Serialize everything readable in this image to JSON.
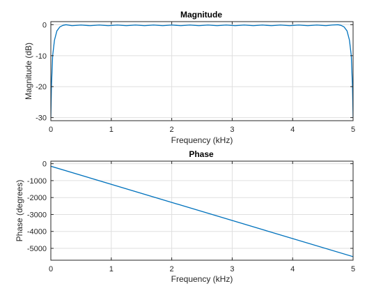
{
  "chart_data": [
    {
      "type": "line",
      "title": "Magnitude",
      "xlabel": "Frequency (kHz)",
      "ylabel": "Magnitude (dB)",
      "xlim": [
        0,
        5
      ],
      "ylim": [
        -31,
        1
      ],
      "xticks": [
        0,
        1,
        2,
        3,
        4,
        5
      ],
      "yticks": [
        -30,
        -20,
        -10,
        0
      ],
      "xticklabels": [
        "0",
        "1",
        "2",
        "3",
        "4",
        "5"
      ],
      "yticklabels": [
        "-30",
        "-20",
        "-10",
        "0"
      ],
      "grid": true,
      "color": "#0072bd",
      "series": [
        {
          "x": [
            0,
            0.01,
            0.03,
            0.06,
            0.1,
            0.15,
            0.2,
            0.25,
            0.35,
            0.5,
            0.65,
            0.8,
            0.95,
            1.1,
            1.25,
            1.4,
            1.55,
            1.7,
            1.85,
            2.0,
            2.15,
            2.3,
            2.45,
            2.6,
            2.75,
            2.9,
            3.05,
            3.2,
            3.35,
            3.5,
            3.65,
            3.8,
            3.95,
            4.1,
            4.25,
            4.4,
            4.55,
            4.65,
            4.75,
            4.8,
            4.85,
            4.9,
            4.94,
            4.97,
            4.99,
            5.0
          ],
          "y": [
            -30,
            -20,
            -10,
            -5,
            -2,
            -0.7,
            -0.2,
            0,
            -0.3,
            -0.1,
            -0.3,
            -0.1,
            -0.3,
            -0.1,
            -0.3,
            -0.1,
            -0.3,
            -0.1,
            -0.3,
            -0.1,
            -0.3,
            -0.1,
            -0.3,
            -0.1,
            -0.3,
            -0.1,
            -0.3,
            -0.1,
            -0.3,
            -0.1,
            -0.3,
            -0.1,
            -0.3,
            -0.1,
            -0.3,
            -0.1,
            -0.3,
            -0.1,
            0,
            -0.2,
            -0.7,
            -2,
            -5,
            -10,
            -20,
            -30
          ]
        }
      ]
    },
    {
      "type": "line",
      "title": "Phase",
      "xlabel": "Frequency (kHz)",
      "ylabel": "Phase (degrees)",
      "xlim": [
        0,
        5
      ],
      "ylim": [
        -5700,
        150
      ],
      "xticks": [
        0,
        1,
        2,
        3,
        4,
        5
      ],
      "yticks": [
        -5000,
        -4000,
        -3000,
        -2000,
        -1000,
        0
      ],
      "xticklabels": [
        "0",
        "1",
        "2",
        "3",
        "4",
        "5"
      ],
      "yticklabels": [
        "-5000",
        "-4000",
        "-3000",
        "-2000",
        "-1000",
        "0"
      ],
      "grid": true,
      "color": "#0072bd",
      "series": [
        {
          "x": [
            0,
            5
          ],
          "y": [
            -150,
            -5490
          ]
        }
      ]
    }
  ]
}
